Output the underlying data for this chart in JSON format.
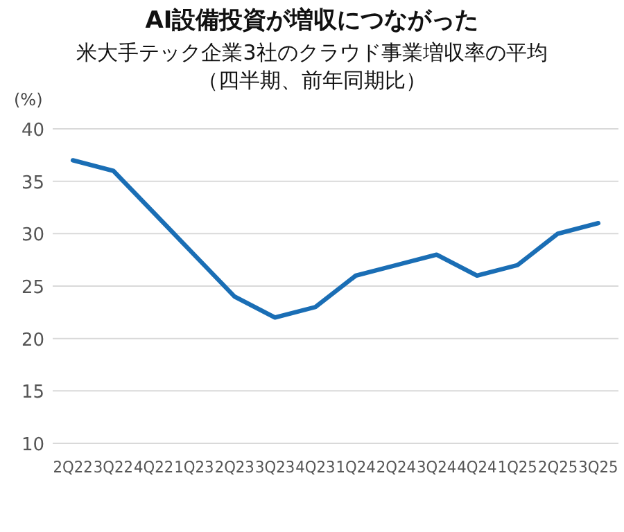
{
  "chart_data": {
    "type": "line",
    "title": "AI設備投資が増収につながった",
    "subtitle": "米大手テック企業3社のクラウド事業増収率の平均（四半期、前年同期比）",
    "ylabel": "(%)",
    "categories": [
      "2Q22",
      "3Q22",
      "4Q22",
      "1Q23",
      "2Q23",
      "3Q23",
      "4Q23",
      "1Q24",
      "2Q24",
      "3Q24",
      "4Q24",
      "1Q25",
      "2Q25",
      "3Q25"
    ],
    "series": [
      {
        "color": "#1a6eb5",
        "values": [
          37,
          36,
          32,
          28,
          24,
          22,
          23,
          26,
          27,
          28,
          26,
          27,
          30,
          31
        ]
      }
    ],
    "ylim": [
      10,
      40
    ],
    "yticks": [
      10,
      15,
      20,
      25,
      30,
      35,
      40
    ],
    "grid": "y",
    "marker": "none",
    "line_style": "solid"
  }
}
